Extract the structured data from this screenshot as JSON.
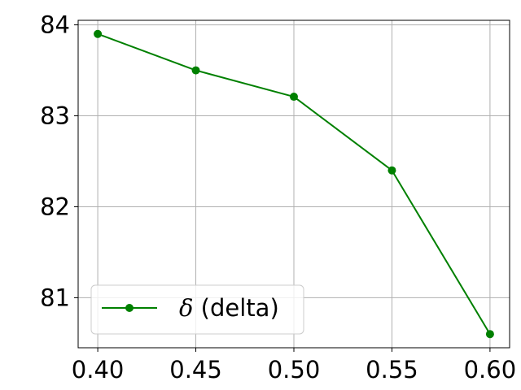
{
  "chart_data": {
    "type": "line",
    "title": "",
    "xlabel": "",
    "ylabel": "",
    "xlim": [
      0.39,
      0.61
    ],
    "ylim": [
      80.45,
      84.05
    ],
    "x_ticks": [
      "0.40",
      "0.45",
      "0.50",
      "0.55",
      "0.60"
    ],
    "y_ticks": [
      "81",
      "82",
      "83",
      "84"
    ],
    "grid": true,
    "legend": {
      "placement": "lower-left",
      "symbol": "δ",
      "suffix": " (delta)"
    },
    "series": [
      {
        "name": "δ (delta)",
        "color": "#008000",
        "marker": "circle",
        "x": [
          0.4,
          0.45,
          0.5,
          0.55,
          0.6
        ],
        "y": [
          83.9,
          83.5,
          83.21,
          82.4,
          80.6
        ]
      }
    ]
  }
}
